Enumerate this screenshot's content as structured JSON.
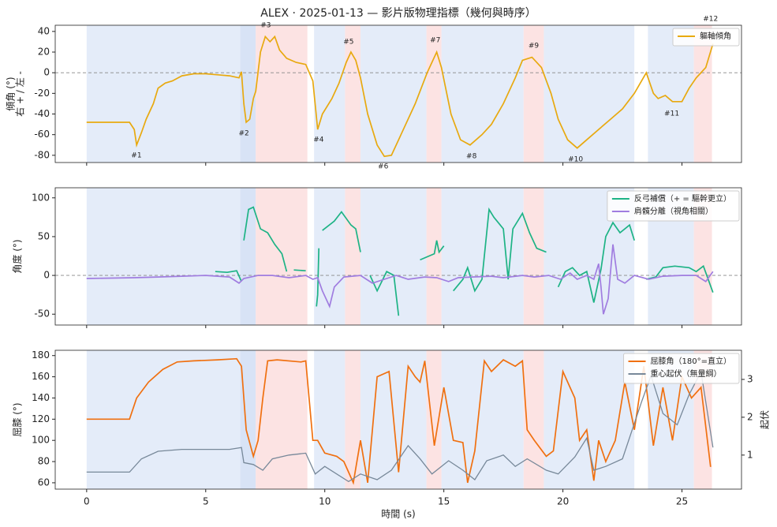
{
  "title": "ALEX · 2025-01-13 — 影片版物理指標（幾何與時序）",
  "spans": [
    {
      "start": 0,
      "end": 6.45,
      "color": "#dbe5f7"
    },
    {
      "start": 6.45,
      "end": 7.1,
      "color": "#cbd9f3"
    },
    {
      "start": 7.1,
      "end": 9.27,
      "color": "#fbd9d9"
    },
    {
      "start": 9.55,
      "end": 10.85,
      "color": "#dbe5f7"
    },
    {
      "start": 10.85,
      "end": 11.5,
      "color": "#fbd9d9"
    },
    {
      "start": 11.5,
      "end": 14.27,
      "color": "#dbe5f7"
    },
    {
      "start": 14.27,
      "end": 14.9,
      "color": "#fbd9d9"
    },
    {
      "start": 14.9,
      "end": 18.35,
      "color": "#dbe5f7"
    },
    {
      "start": 18.35,
      "end": 19.2,
      "color": "#fbd9d9"
    },
    {
      "start": 19.2,
      "end": 23.0,
      "color": "#dbe5f7"
    },
    {
      "start": 23.57,
      "end": 25.5,
      "color": "#dbe5f7"
    },
    {
      "start": 25.5,
      "end": 26.26,
      "color": "#fbd9d9"
    }
  ],
  "chart_data": [
    {
      "type": "line",
      "ylabel": [
        "傾角 (°)",
        "右 + / 左 -"
      ],
      "xlim": [
        -1.32,
        27.5
      ],
      "ylim": [
        -87,
        46
      ],
      "yticks": [
        -80,
        -60,
        -40,
        -20,
        0,
        20,
        40
      ],
      "hline": 0,
      "legend": "upper right",
      "series": [
        {
          "name": "軀軸傾角",
          "color": "#e8a90f",
          "x": [
            0,
            1.8,
            2.0,
            2.1,
            2.3,
            2.5,
            2.8,
            3.0,
            3.3,
            3.6,
            4.0,
            4.5,
            5.0,
            5.5,
            6.0,
            6.4,
            6.5,
            6.6,
            6.7,
            6.85,
            7.0,
            7.1,
            7.3,
            7.5,
            7.7,
            7.9,
            8.1,
            8.4,
            8.8,
            9.2,
            9.5,
            9.7,
            9.9,
            10.3,
            10.6,
            10.9,
            11.1,
            11.3,
            11.5,
            11.8,
            12.2,
            12.5,
            12.8,
            13.2,
            13.8,
            14.3,
            14.7,
            14.9,
            15.3,
            15.7,
            16.1,
            16.6,
            17.0,
            17.5,
            18.0,
            18.3,
            18.7,
            19.1,
            19.5,
            19.8,
            20.2,
            20.6,
            21.0,
            21.5,
            22.0,
            22.5,
            23.0,
            23.5,
            23.8,
            24.0,
            24.3,
            24.6,
            25.0,
            25.3,
            25.6,
            26.0,
            26.3
          ],
          "values": [
            -48,
            -48,
            -55,
            -70,
            -58,
            -45,
            -30,
            -15,
            -10,
            -8,
            -3,
            -1,
            -1,
            -2,
            -3,
            -5,
            1,
            -30,
            -48,
            -45,
            -25,
            -18,
            20,
            35,
            30,
            35,
            22,
            14,
            10,
            8,
            -8,
            -55,
            -40,
            -25,
            -10,
            10,
            20,
            12,
            -5,
            -40,
            -70,
            -81,
            -80,
            -60,
            -30,
            0,
            20,
            5,
            -40,
            -65,
            -70,
            -60,
            -50,
            -30,
            -5,
            12,
            15,
            5,
            -20,
            -45,
            -65,
            -73,
            -65,
            -55,
            -45,
            -35,
            -20,
            0,
            -20,
            -25,
            -22,
            -28,
            -28,
            -15,
            -5,
            5,
            28
          ]
        }
      ],
      "annotations": [
        {
          "text": "#1",
          "x": 2.09,
          "y": -80
        },
        {
          "text": "#2",
          "x": 6.6,
          "y": -58.6
        },
        {
          "text": "#3",
          "x": 7.52,
          "y": 46
        },
        {
          "text": "#4",
          "x": 9.74,
          "y": -64.7
        },
        {
          "text": "#5",
          "x": 11.0,
          "y": 30
        },
        {
          "text": "#6",
          "x": 12.45,
          "y": -90.7
        },
        {
          "text": "#7",
          "x": 14.64,
          "y": 31.6
        },
        {
          "text": "#8",
          "x": 16.16,
          "y": -80.8
        },
        {
          "text": "#9",
          "x": 18.77,
          "y": 26.2
        },
        {
          "text": "#10",
          "x": 20.53,
          "y": -83.8
        },
        {
          "text": "#11",
          "x": 24.57,
          "y": -39.5
        },
        {
          "text": "#12",
          "x": 26.2,
          "y": 52
        }
      ]
    },
    {
      "type": "line",
      "ylabel": [
        "角度 (°)"
      ],
      "xlim": [
        -1.32,
        27.5
      ],
      "ylim": [
        -64,
        113
      ],
      "yticks": [
        -50,
        0,
        50,
        100
      ],
      "hline": 0,
      "legend": "upper right",
      "series": [
        {
          "name": "反弓補償（+ = 驅幹更立）",
          "color": "#1db385",
          "x": [
            5.4,
            5.9,
            6.3,
            6.5,
            null,
            6.6,
            6.8,
            7.0,
            7.3,
            7.6,
            7.9,
            8.2,
            8.4,
            null,
            8.7,
            9.2,
            null,
            9.65,
            9.7,
            9.75,
            null,
            9.9,
            10.4,
            10.7,
            11.1,
            11.3,
            11.5,
            null,
            11.9,
            12.2,
            12.6,
            12.9,
            13.1,
            null,
            14.0,
            14.6,
            14.7,
            14.8,
            15.0,
            null,
            15.4,
            15.8,
            16.0,
            16.3,
            16.6,
            16.9,
            17.1,
            17.5,
            17.7,
            17.9,
            18.3,
            18.6,
            18.9,
            19.3,
            null,
            19.8,
            20.1,
            20.4,
            20.7,
            21.0,
            21.3,
            21.6,
            21.8,
            22.1,
            22.4,
            22.8,
            23.0,
            null,
            23.5,
            23.9,
            24.2,
            24.7,
            25.3,
            25.6,
            25.9,
            26.3
          ],
          "values": [
            5,
            4,
            6,
            -8,
            null,
            45,
            85,
            88,
            60,
            55,
            40,
            28,
            5,
            null,
            7,
            6,
            null,
            -40,
            -25,
            35,
            null,
            58,
            70,
            82,
            65,
            60,
            30,
            null,
            0,
            -20,
            5,
            0,
            -52,
            null,
            20,
            28,
            45,
            30,
            38,
            null,
            -20,
            -5,
            10,
            -20,
            -5,
            85,
            75,
            60,
            -5,
            60,
            80,
            55,
            35,
            30,
            null,
            -15,
            5,
            10,
            0,
            5,
            -35,
            8,
            50,
            68,
            55,
            65,
            45,
            null,
            -5,
            -2,
            10,
            12,
            10,
            5,
            12,
            -22
          ]
        },
        {
          "name": "肩髖分離（視角相關）",
          "color": "#a07de0",
          "x": [
            0,
            2,
            3,
            4,
            5,
            6,
            6.4,
            6.6,
            7.2,
            7.8,
            8.5,
            9.2,
            9.5,
            9.7,
            9.9,
            10.2,
            10.4,
            10.8,
            11.5,
            12,
            12.5,
            13,
            13.5,
            14.2,
            14.7,
            15.2,
            15.6,
            16.2,
            17.0,
            17.5,
            18.3,
            18.8,
            19.4,
            19.9,
            20.3,
            20.6,
            21.0,
            21.3,
            21.5,
            21.6,
            21.7,
            21.9,
            22.1,
            22.3,
            22.6,
            23.0,
            23.6,
            24.2,
            25.0,
            25.6,
            26.0,
            26.3
          ],
          "values": [
            -4,
            -3,
            -2,
            -1,
            0,
            -2,
            -10,
            -4,
            0,
            0,
            -3,
            0,
            -5,
            -3,
            -20,
            -40,
            -15,
            -2,
            0,
            -10,
            -5,
            0,
            -5,
            -2,
            -3,
            -8,
            -3,
            -2,
            -1,
            -3,
            0,
            -2,
            0,
            -5,
            3,
            -5,
            0,
            -5,
            15,
            -15,
            -50,
            -30,
            40,
            -5,
            -10,
            0,
            -5,
            -1,
            0,
            0,
            -8,
            5
          ]
        }
      ]
    },
    {
      "type": "line",
      "ylabel": [
        "屈膝 (°)"
      ],
      "y2label": "起伏",
      "xlabel": "時間 (s)",
      "xlim": [
        -1.32,
        27.5
      ],
      "ylim": [
        54,
        185
      ],
      "yticks": [
        60,
        80,
        100,
        120,
        140,
        160,
        180
      ],
      "y2lim": [
        0.1,
        3.77
      ],
      "y2ticks": [
        1,
        2,
        3
      ],
      "xticks": [
        0,
        5,
        10,
        15,
        20,
        25
      ],
      "legend": "upper right",
      "series": [
        {
          "name": "屈膝角（180°=直立）",
          "color": "#f07010",
          "x": [
            0,
            1.8,
            2.1,
            2.6,
            3.2,
            3.8,
            4.5,
            5.5,
            6.3,
            6.5,
            6.7,
            7.0,
            7.2,
            7.4,
            7.6,
            8.0,
            9.0,
            9.2,
            9.5,
            9.7,
            10.0,
            10.5,
            10.8,
            11.2,
            11.5,
            11.8,
            12.2,
            12.7,
            13.1,
            13.5,
            13.8,
            14.0,
            14.2,
            14.6,
            15.0,
            15.4,
            15.8,
            16.0,
            16.3,
            16.7,
            17.0,
            17.5,
            18.0,
            18.3,
            18.5,
            18.8,
            19.3,
            19.6,
            20.0,
            20.5,
            20.7,
            21.0,
            21.3,
            21.5,
            21.8,
            22.2,
            22.6,
            23.0,
            23.4,
            23.8,
            24.2,
            24.6,
            25.0,
            25.4,
            25.8,
            26.2
          ],
          "values": [
            120,
            120,
            140,
            155,
            167,
            174,
            175,
            176,
            177,
            170,
            110,
            85,
            100,
            140,
            175,
            176,
            174,
            175,
            100,
            100,
            88,
            85,
            80,
            60,
            100,
            60,
            160,
            165,
            70,
            170,
            160,
            155,
            175,
            95,
            150,
            100,
            98,
            60,
            90,
            175,
            165,
            176,
            170,
            175,
            110,
            100,
            85,
            90,
            165,
            140,
            100,
            110,
            62,
            100,
            80,
            100,
            155,
            110,
            170,
            95,
            150,
            100,
            160,
            140,
            150,
            75
          ]
        },
        {
          "name": "重心起伏（無量綱）",
          "color": "#778899",
          "axis": "y2",
          "x": [
            0,
            1.8,
            2.3,
            3.0,
            4.0,
            5.0,
            6.0,
            6.5,
            6.6,
            7.0,
            7.4,
            7.8,
            8.5,
            9.2,
            9.6,
            10.0,
            11.0,
            11.5,
            12.2,
            12.8,
            13.5,
            14.0,
            14.5,
            15.2,
            15.8,
            16.3,
            16.8,
            17.5,
            18.0,
            18.5,
            19.3,
            19.8,
            20.5,
            21.0,
            21.3,
            21.8,
            22.5,
            23.3,
            23.7,
            24.2,
            24.8,
            25.3,
            25.8,
            26.3
          ],
          "values": [
            0.55,
            0.55,
            0.9,
            1.1,
            1.15,
            1.15,
            1.15,
            1.2,
            0.8,
            0.75,
            0.6,
            0.9,
            1.0,
            1.05,
            0.5,
            0.7,
            0.3,
            0.5,
            0.35,
            0.6,
            1.25,
            0.9,
            0.5,
            0.85,
            0.6,
            0.35,
            0.85,
            1.0,
            0.7,
            0.9,
            0.6,
            0.5,
            0.95,
            1.45,
            0.6,
            0.7,
            0.9,
            2.4,
            3.1,
            2.1,
            1.8,
            2.6,
            3.2,
            1.2
          ]
        }
      ]
    }
  ]
}
